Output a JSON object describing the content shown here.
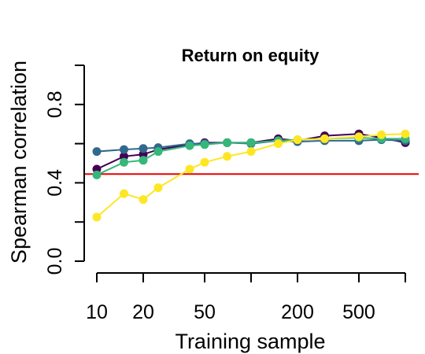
{
  "chart_data": {
    "type": "line",
    "title": "Return on equity",
    "xlabel": "Training sample",
    "ylabel": "Spearman correlation",
    "x_scale": "log",
    "xlim": [
      10,
      1000
    ],
    "ylim": [
      0,
      1
    ],
    "x_ticks": [
      10,
      20,
      50,
      200,
      500
    ],
    "x_tick_labels": [
      "10",
      "20",
      "50",
      "200",
      "500"
    ],
    "y_ticks": [
      0.0,
      0.4,
      0.8
    ],
    "y_tick_labels": [
      "0.0",
      "0.4",
      "0.8"
    ],
    "grid": false,
    "legend": "none",
    "reference_line": {
      "y": 0.445,
      "color": "#e60000"
    },
    "x": [
      10,
      15,
      20,
      25,
      40,
      50,
      70,
      100,
      150,
      200,
      300,
      500,
      700,
      1000
    ],
    "series": [
      {
        "color": "#440154",
        "values": [
          0.47,
          0.535,
          0.545,
          0.57,
          0.595,
          0.605,
          0.605,
          0.605,
          0.625,
          0.615,
          0.64,
          0.65,
          0.63,
          0.605
        ]
      },
      {
        "color": "#31688e",
        "values": [
          0.56,
          0.57,
          0.575,
          0.58,
          0.6,
          0.6,
          0.605,
          0.6,
          0.615,
          0.61,
          0.615,
          0.615,
          0.62,
          0.615
        ]
      },
      {
        "color": "#35b779",
        "values": [
          0.44,
          0.505,
          0.515,
          0.56,
          0.59,
          0.595,
          0.605,
          0.605,
          0.615,
          0.62,
          0.625,
          0.63,
          0.625,
          0.625
        ]
      },
      {
        "color": "#fde725",
        "values": [
          0.225,
          0.345,
          0.315,
          0.375,
          0.47,
          0.505,
          0.535,
          0.56,
          0.6,
          0.62,
          0.625,
          0.635,
          0.645,
          0.65
        ]
      }
    ]
  }
}
